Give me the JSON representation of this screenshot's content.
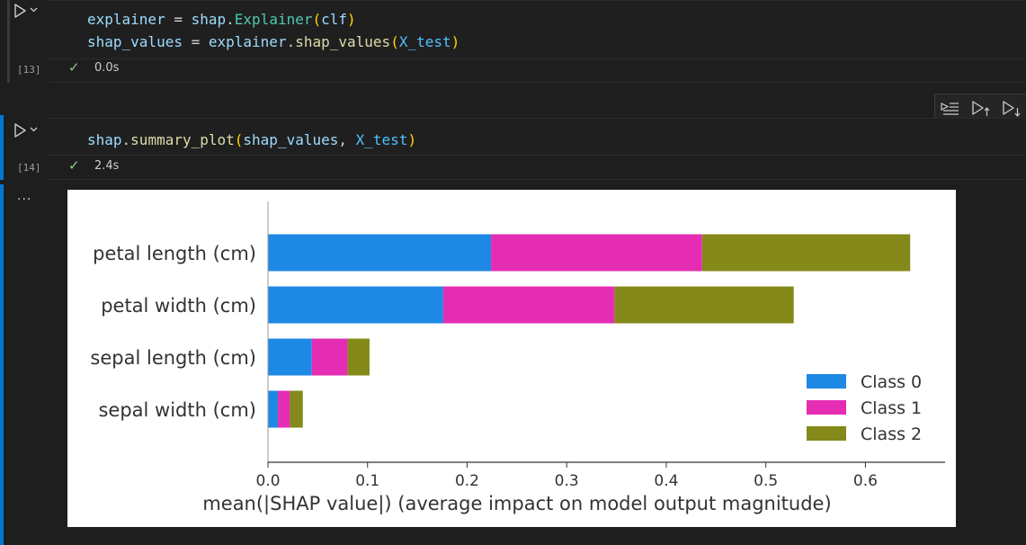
{
  "cells": [
    {
      "exec_count": "[13]",
      "exec_time": "0.0s",
      "lines": [
        [
          {
            "t": "explainer",
            "c": "tok-id"
          },
          {
            "t": " = ",
            "c": "tok-op"
          },
          {
            "t": "shap",
            "c": "tok-id"
          },
          {
            "t": ".",
            "c": "tok-op"
          },
          {
            "t": "Explainer",
            "c": "tok-cls"
          },
          {
            "t": "(",
            "c": "tok-paren"
          },
          {
            "t": "clf",
            "c": "tok-id"
          },
          {
            "t": ")",
            "c": "tok-paren"
          }
        ],
        [
          {
            "t": "shap_values",
            "c": "tok-id"
          },
          {
            "t": " = ",
            "c": "tok-op"
          },
          {
            "t": "explainer",
            "c": "tok-id"
          },
          {
            "t": ".",
            "c": "tok-op"
          },
          {
            "t": "shap_values",
            "c": "tok-fn"
          },
          {
            "t": "(",
            "c": "tok-paren"
          },
          {
            "t": "X_test",
            "c": "tok-const"
          },
          {
            "t": ")",
            "c": "tok-paren"
          }
        ]
      ]
    },
    {
      "exec_count": "[14]",
      "exec_time": "2.4s",
      "lines": [
        [
          {
            "t": "shap",
            "c": "tok-id"
          },
          {
            "t": ".",
            "c": "tok-op"
          },
          {
            "t": "summary_plot",
            "c": "tok-fn"
          },
          {
            "t": "(",
            "c": "tok-paren"
          },
          {
            "t": "shap_values",
            "c": "tok-id"
          },
          {
            "t": ", ",
            "c": "tok-op"
          },
          {
            "t": "X_test",
            "c": "tok-const"
          },
          {
            "t": ")",
            "c": "tok-paren"
          }
        ]
      ]
    }
  ],
  "output_ellipsis": "...",
  "check_glyph": "✓",
  "chart_data": {
    "type": "bar",
    "orientation": "horizontal",
    "stacked": true,
    "categories": [
      "petal length (cm)",
      "petal width (cm)",
      "sepal length (cm)",
      "sepal width (cm)"
    ],
    "series": [
      {
        "name": "Class 0",
        "color": "#1e88e5",
        "values": [
          0.224,
          0.176,
          0.044,
          0.01
        ]
      },
      {
        "name": "Class 1",
        "color": "#e52db3",
        "values": [
          0.212,
          0.172,
          0.036,
          0.012
        ]
      },
      {
        "name": "Class 2",
        "color": "#84891a",
        "values": [
          0.209,
          0.18,
          0.022,
          0.013
        ]
      }
    ],
    "xlabel": "mean(|SHAP value|) (average impact on model output magnitude)",
    "xlim": [
      0,
      0.68
    ],
    "xticks": [
      0.0,
      0.1,
      0.2,
      0.3,
      0.4,
      0.5,
      0.6
    ],
    "xtick_labels": [
      "0.0",
      "0.1",
      "0.2",
      "0.3",
      "0.4",
      "0.5",
      "0.6"
    ],
    "legend_placement": "bottom-right",
    "grid": false
  }
}
